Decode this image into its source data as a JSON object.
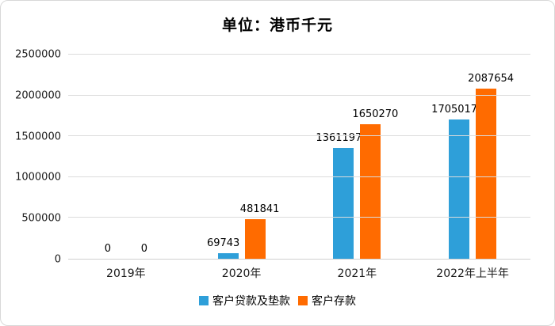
{
  "chart_data": {
    "type": "bar",
    "title": "单位：港币千元",
    "categories": [
      "2019年",
      "2020年",
      "2021年",
      "2022年上半年"
    ],
    "series": [
      {
        "name": "客户贷款及垫款",
        "color": "#2E9FD9",
        "values": [
          0,
          69743,
          1361197,
          1705017
        ]
      },
      {
        "name": "客户存款",
        "color": "#FF6B00",
        "values": [
          0,
          481841,
          1650270,
          2087654
        ]
      }
    ],
    "xlabel": "",
    "ylabel": "",
    "ylim": [
      0,
      2500000
    ],
    "yticks": [
      0,
      500000,
      1000000,
      1500000,
      2000000,
      2500000
    ],
    "grid": true,
    "legend_position": "bottom"
  }
}
